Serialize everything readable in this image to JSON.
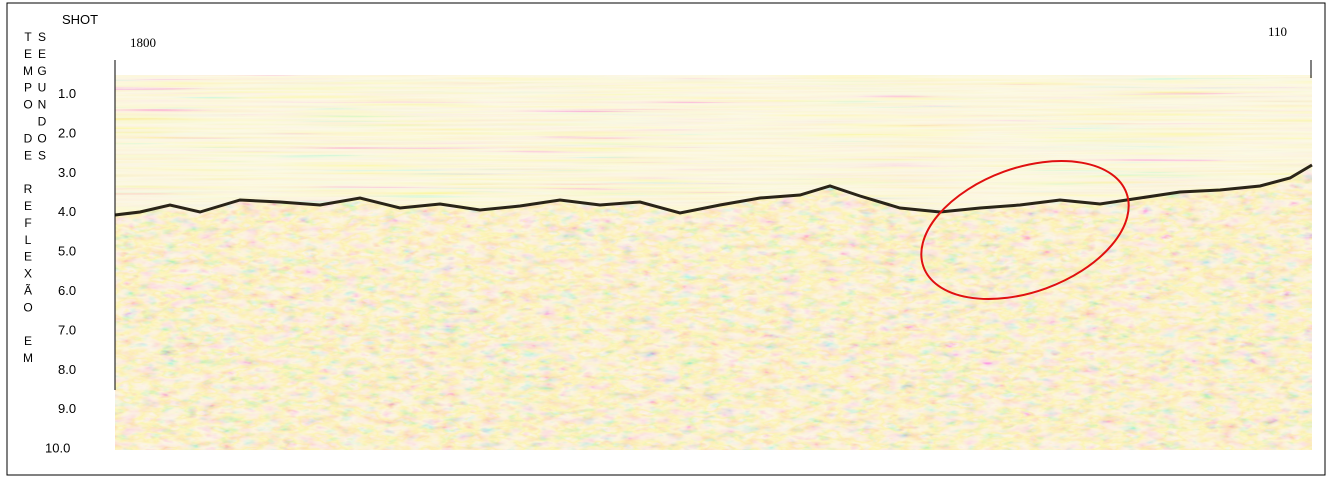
{
  "figure": {
    "shot_label": "SHOT",
    "shot_start": "1800",
    "shot_end": "110",
    "y_axis_label": "TEMPO DE REFLEXÃO EM SEGUNDOS",
    "y_ticks": [
      "1.0",
      "2.0",
      "3.0",
      "4.0",
      "5.0",
      "6.0",
      "7.0",
      "8.0",
      "9.0",
      "10.0"
    ]
  }
}
